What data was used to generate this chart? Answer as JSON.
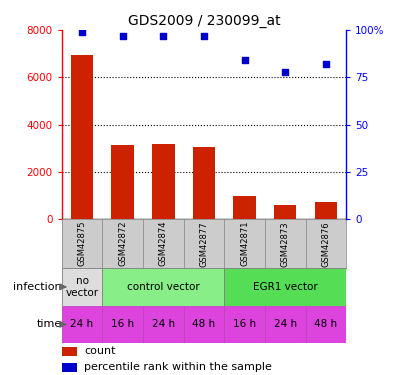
{
  "title": "GDS2009 / 230099_at",
  "samples": [
    "GSM42875",
    "GSM42872",
    "GSM42874",
    "GSM42877",
    "GSM42871",
    "GSM42873",
    "GSM42876"
  ],
  "bar_values": [
    6950,
    3150,
    3200,
    3050,
    1000,
    600,
    750
  ],
  "percentile_values": [
    99,
    97,
    97,
    97,
    84,
    78,
    82
  ],
  "bar_color": "#cc2200",
  "dot_color": "#0000cc",
  "ylim_left": [
    0,
    8000
  ],
  "ylim_right": [
    0,
    100
  ],
  "yticks_left": [
    0,
    2000,
    4000,
    6000,
    8000
  ],
  "yticks_right": [
    0,
    25,
    50,
    75,
    100
  ],
  "grid_lines": [
    2000,
    4000,
    6000
  ],
  "infection_groups": [
    {
      "label": "no\nvector",
      "start": 0,
      "end": 1,
      "color": "#dddddd"
    },
    {
      "label": "control vector",
      "start": 1,
      "end": 4,
      "color": "#88ee88"
    },
    {
      "label": "EGR1 vector",
      "start": 4,
      "end": 7,
      "color": "#55dd55"
    }
  ],
  "time_labels": [
    "24 h",
    "16 h",
    "24 h",
    "48 h",
    "16 h",
    "24 h",
    "48 h"
  ],
  "time_color": "#dd44dd",
  "infection_label": "infection",
  "time_label": "time",
  "legend_bar_label": "count",
  "legend_dot_label": "percentile rank within the sample",
  "background_color": "#ffffff",
  "sample_box_color": "#cccccc"
}
